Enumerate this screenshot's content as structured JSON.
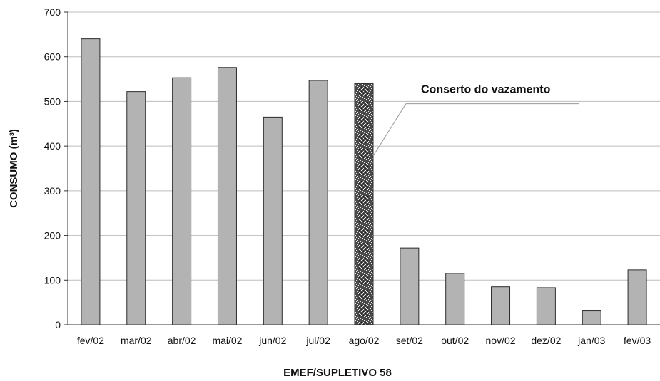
{
  "chart_data": {
    "type": "bar",
    "title": "",
    "xlabel": "EMEF/SUPLETIVO 58",
    "ylabel": "CONSUMO (m³)",
    "ylim": [
      0,
      700
    ],
    "yticks": [
      "0",
      "100",
      "200",
      "300",
      "400",
      "500",
      "600",
      "700"
    ],
    "grid": true,
    "categories": [
      "fev/02",
      "mar/02",
      "abr/02",
      "mai/02",
      "jun/02",
      "jul/02",
      "ago/02",
      "set/02",
      "out/02",
      "nov/02",
      "dez/02",
      "jan/03",
      "fev/03"
    ],
    "values": [
      640,
      522,
      553,
      576,
      465,
      547,
      540,
      172,
      115,
      85,
      83,
      31,
      123
    ],
    "highlight_index": 6,
    "annotation": {
      "text": "Conserto do vazamento",
      "category": "ago/02"
    },
    "colors": {
      "bar": "#b3b3b3",
      "bar_stroke": "#2b2b2b",
      "highlight_dark": "#2e2e2e",
      "highlight_light": "#e8e8e8",
      "grid": "#bdbdbd"
    }
  }
}
